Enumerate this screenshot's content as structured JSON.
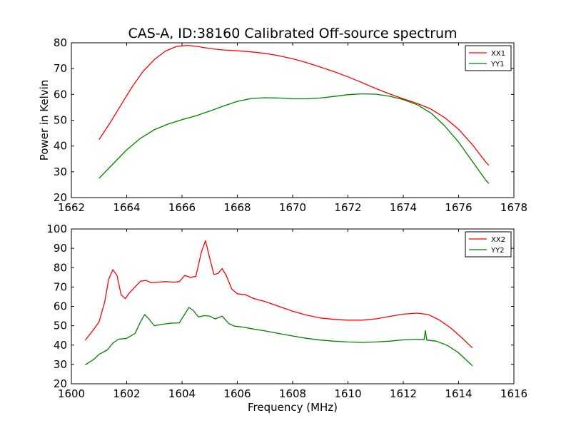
{
  "title": "CAS-A, ID:38160 Calibrated Off-source spectrum",
  "chart_data": [
    {
      "type": "line",
      "xlabel": "",
      "ylabel": "Power in Kelvin",
      "xlim": [
        1662,
        1678
      ],
      "ylim": [
        20,
        80
      ],
      "xticks": [
        "1662",
        "1664",
        "1666",
        "1668",
        "1670",
        "1672",
        "1674",
        "1676",
        "1678"
      ],
      "yticks": [
        "20",
        "30",
        "40",
        "50",
        "60",
        "70",
        "80"
      ],
      "legend_position": "top-right",
      "series": [
        {
          "name": "XX1",
          "color": "#ff0000",
          "points": [
            [
              1663.0,
              42.5
            ],
            [
              1663.4,
              49
            ],
            [
              1663.8,
              56
            ],
            [
              1664.2,
              63
            ],
            [
              1664.6,
              69
            ],
            [
              1665.0,
              73.5
            ],
            [
              1665.4,
              76.8
            ],
            [
              1665.8,
              78.6
            ],
            [
              1666.2,
              79.0
            ],
            [
              1666.6,
              78.5
            ],
            [
              1667.0,
              77.8
            ],
            [
              1667.5,
              77.2
            ],
            [
              1668.0,
              76.9
            ],
            [
              1668.5,
              76.5
            ],
            [
              1669.0,
              75.9
            ],
            [
              1669.5,
              75.0
            ],
            [
              1670.0,
              73.8
            ],
            [
              1670.5,
              72.3
            ],
            [
              1671.0,
              70.6
            ],
            [
              1671.5,
              68.8
            ],
            [
              1672.0,
              66.8
            ],
            [
              1672.5,
              64.6
            ],
            [
              1673.0,
              62.3
            ],
            [
              1673.5,
              60.2
            ],
            [
              1674.0,
              58.3
            ],
            [
              1674.5,
              56.5
            ],
            [
              1675.0,
              54.3
            ],
            [
              1675.5,
              51.0
            ],
            [
              1676.0,
              46.5
            ],
            [
              1676.5,
              40.5
            ],
            [
              1677.0,
              33.5
            ],
            [
              1677.1,
              32.5
            ]
          ]
        },
        {
          "name": "YY1",
          "color": "#008000",
          "points": [
            [
              1663.0,
              27.5
            ],
            [
              1663.5,
              33.0
            ],
            [
              1664.0,
              38.5
            ],
            [
              1664.5,
              43.0
            ],
            [
              1665.0,
              46.3
            ],
            [
              1665.5,
              48.5
            ],
            [
              1666.0,
              50.2
            ],
            [
              1666.5,
              51.7
            ],
            [
              1667.0,
              53.5
            ],
            [
              1667.5,
              55.5
            ],
            [
              1668.0,
              57.3
            ],
            [
              1668.5,
              58.4
            ],
            [
              1669.0,
              58.7
            ],
            [
              1669.5,
              58.6
            ],
            [
              1670.0,
              58.3
            ],
            [
              1670.5,
              58.3
            ],
            [
              1671.0,
              58.6
            ],
            [
              1671.5,
              59.2
            ],
            [
              1672.0,
              59.9
            ],
            [
              1672.5,
              60.2
            ],
            [
              1673.0,
              60.1
            ],
            [
              1673.5,
              59.3
            ],
            [
              1674.0,
              58.0
            ],
            [
              1674.5,
              56.0
            ],
            [
              1675.0,
              52.8
            ],
            [
              1675.5,
              47.8
            ],
            [
              1676.0,
              41.5
            ],
            [
              1676.5,
              34.0
            ],
            [
              1677.0,
              26.5
            ],
            [
              1677.1,
              25.5
            ]
          ]
        }
      ]
    },
    {
      "type": "line",
      "xlabel": "Frequency (MHz)",
      "ylabel": "",
      "xlim": [
        1600,
        1616
      ],
      "ylim": [
        20,
        100
      ],
      "xticks": [
        "1600",
        "1602",
        "1604",
        "1606",
        "1608",
        "1610",
        "1612",
        "1614",
        "1616"
      ],
      "yticks": [
        "20",
        "30",
        "40",
        "50",
        "60",
        "70",
        "80",
        "90",
        "100"
      ],
      "legend_position": "top-right",
      "series": [
        {
          "name": "XX2",
          "color": "#ff0000",
          "points": [
            [
              1600.5,
              42.5
            ],
            [
              1600.8,
              48
            ],
            [
              1601.0,
              52
            ],
            [
              1601.2,
              62
            ],
            [
              1601.35,
              74
            ],
            [
              1601.5,
              79
            ],
            [
              1601.65,
              76
            ],
            [
              1601.8,
              66
            ],
            [
              1601.95,
              64
            ],
            [
              1602.1,
              67
            ],
            [
              1602.3,
              70
            ],
            [
              1602.5,
              73
            ],
            [
              1602.7,
              73.4
            ],
            [
              1602.9,
              72.2
            ],
            [
              1603.1,
              72.5
            ],
            [
              1603.4,
              72.8
            ],
            [
              1603.7,
              72.5
            ],
            [
              1603.9,
              72.8
            ],
            [
              1604.1,
              76
            ],
            [
              1604.3,
              75
            ],
            [
              1604.5,
              75.5
            ],
            [
              1604.7,
              88
            ],
            [
              1604.85,
              94
            ],
            [
              1605.0,
              85
            ],
            [
              1605.15,
              76.5
            ],
            [
              1605.3,
              77
            ],
            [
              1605.45,
              79.5
            ],
            [
              1605.6,
              76
            ],
            [
              1605.8,
              69
            ],
            [
              1606.0,
              66.5
            ],
            [
              1606.3,
              66
            ],
            [
              1606.6,
              64
            ],
            [
              1607.0,
              62.5
            ],
            [
              1607.5,
              60
            ],
            [
              1608.0,
              57.5
            ],
            [
              1608.5,
              55.5
            ],
            [
              1609.0,
              54
            ],
            [
              1609.5,
              53.3
            ],
            [
              1610.0,
              52.9
            ],
            [
              1610.5,
              52.9
            ],
            [
              1611.0,
              53.5
            ],
            [
              1611.5,
              54.8
            ],
            [
              1612.0,
              56.0
            ],
            [
              1612.5,
              56.5
            ],
            [
              1612.9,
              55.8
            ],
            [
              1613.3,
              53
            ],
            [
              1613.7,
              49
            ],
            [
              1614.1,
              44
            ],
            [
              1614.5,
              38.5
            ]
          ]
        },
        {
          "name": "YY2",
          "color": "#008000",
          "points": [
            [
              1600.5,
              29.8
            ],
            [
              1600.8,
              32.5
            ],
            [
              1601.0,
              35.2
            ],
            [
              1601.3,
              37.5
            ],
            [
              1601.5,
              41
            ],
            [
              1601.7,
              43
            ],
            [
              1602.0,
              43.5
            ],
            [
              1602.3,
              46
            ],
            [
              1602.5,
              52
            ],
            [
              1602.65,
              55.8
            ],
            [
              1602.8,
              53.5
            ],
            [
              1603.0,
              50
            ],
            [
              1603.3,
              50.8
            ],
            [
              1603.6,
              51.3
            ],
            [
              1603.9,
              51.5
            ],
            [
              1604.1,
              56
            ],
            [
              1604.25,
              59.5
            ],
            [
              1604.4,
              58
            ],
            [
              1604.6,
              54.5
            ],
            [
              1604.8,
              55.2
            ],
            [
              1605.0,
              55
            ],
            [
              1605.2,
              53.5
            ],
            [
              1605.45,
              55
            ],
            [
              1605.7,
              51
            ],
            [
              1605.9,
              49.8
            ],
            [
              1606.2,
              49.3
            ],
            [
              1606.5,
              48.5
            ],
            [
              1607.0,
              47.3
            ],
            [
              1607.5,
              46
            ],
            [
              1608.0,
              44.7
            ],
            [
              1608.5,
              43.5
            ],
            [
              1609.0,
              42.6
            ],
            [
              1609.5,
              42.0
            ],
            [
              1610.0,
              41.6
            ],
            [
              1610.5,
              41.4
            ],
            [
              1611.0,
              41.6
            ],
            [
              1611.5,
              42.0
            ],
            [
              1612.0,
              42.7
            ],
            [
              1612.5,
              43.0
            ],
            [
              1612.75,
              42.8
            ],
            [
              1612.8,
              47.5
            ],
            [
              1612.85,
              42.6
            ],
            [
              1613.2,
              42.0
            ],
            [
              1613.6,
              39.8
            ],
            [
              1614.0,
              36.0
            ],
            [
              1614.5,
              29.3
            ]
          ]
        }
      ]
    }
  ]
}
